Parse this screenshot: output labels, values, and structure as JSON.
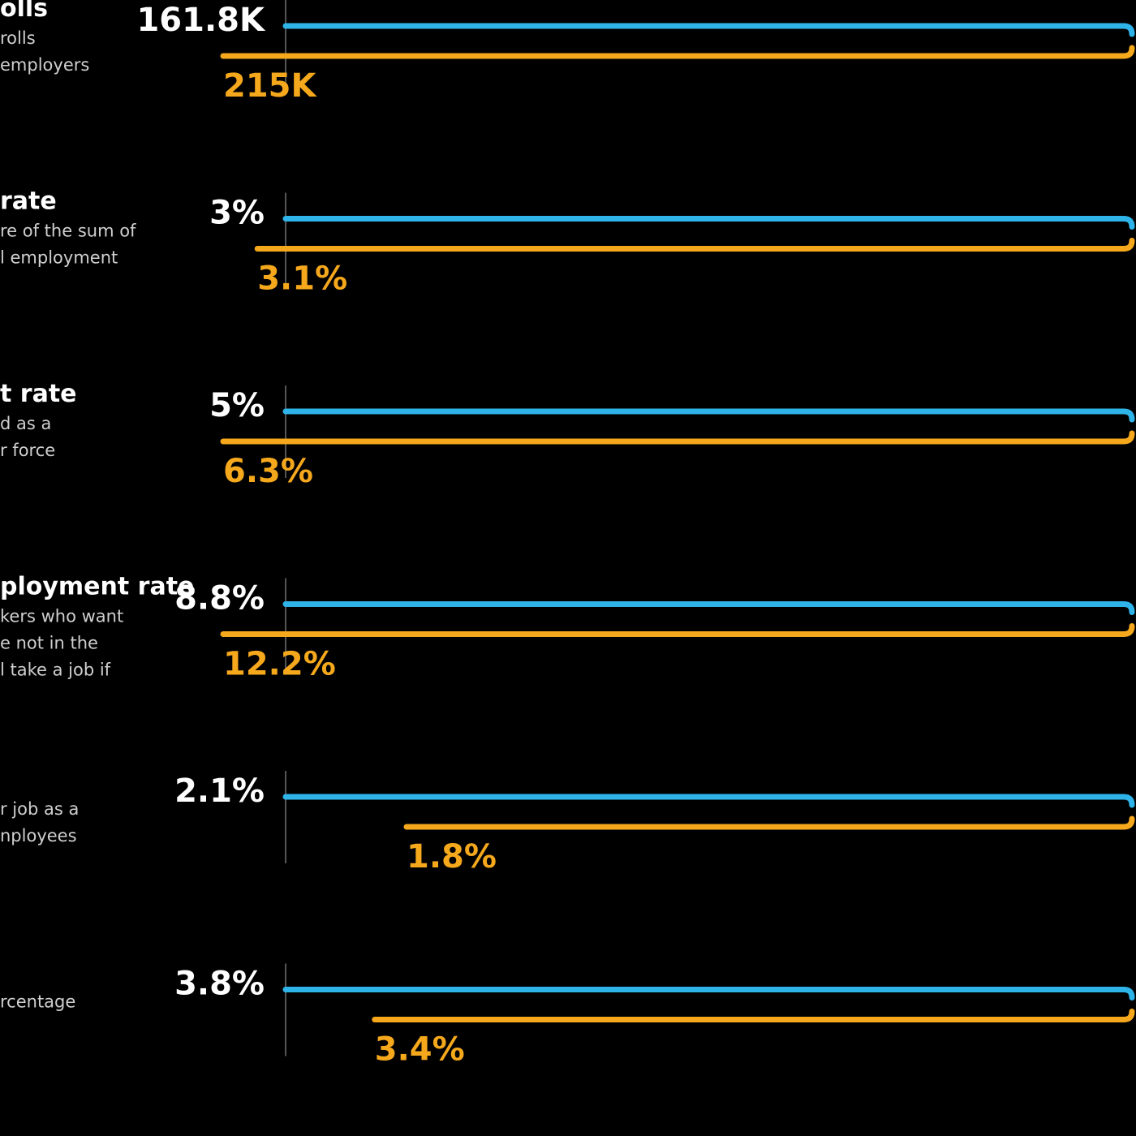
{
  "colors": {
    "current": "#2fb4e9",
    "previous": "#f5a81c",
    "axis": "#555555",
    "background": "#000000"
  },
  "chart_data": {
    "type": "bar",
    "orientation": "horizontal",
    "series": [
      {
        "role": "current",
        "color": "#2fb4e9"
      },
      {
        "role": "previous",
        "color": "#f5a81c"
      }
    ],
    "rows": [
      {
        "title": "olls",
        "description": [
          "rolls",
          "employers"
        ],
        "current": {
          "value": 161.8,
          "label": "161.8K"
        },
        "previous": {
          "value": 215,
          "label": "215K"
        }
      },
      {
        "title": "rate",
        "description": [
          "re of the sum of",
          "l employment"
        ],
        "current": {
          "value": 3,
          "label": "3%"
        },
        "previous": {
          "value": 3.1,
          "label": "3.1%"
        }
      },
      {
        "title": "t rate",
        "description": [
          "d as a",
          "r force"
        ],
        "current": {
          "value": 5,
          "label": "5%"
        },
        "previous": {
          "value": 6.3,
          "label": "6.3%"
        }
      },
      {
        "title": "ployment rate",
        "description": [
          "kers who want",
          "e not in the",
          "l take a job if"
        ],
        "current": {
          "value": 8.8,
          "label": "8.8%"
        },
        "previous": {
          "value": 12.2,
          "label": "12.2%"
        }
      },
      {
        "title": "",
        "description": [
          "r job as a",
          "nployees"
        ],
        "current": {
          "value": 2.1,
          "label": "2.1%"
        },
        "previous": {
          "value": 1.8,
          "label": "1.8%"
        }
      },
      {
        "title": "",
        "description": [
          "rcentage"
        ],
        "current": {
          "value": 3.8,
          "label": "3.8%"
        },
        "previous": {
          "value": 3.4,
          "label": "3.4%"
        }
      }
    ]
  }
}
